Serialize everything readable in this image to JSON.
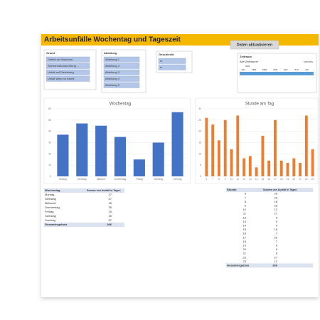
{
  "header": {
    "title": "Arbeitsunfälle Wochentag und Tageszeit",
    "button": "Daten aktualisieren"
  },
  "slicers": [
    {
      "title": "Grund",
      "items": [
        "Defekt an Maschine",
        "Sicherheitsvorkehrung ...",
        "Unfall auf Dienstweg",
        "Unfall Weg zur Arbeit"
      ]
    },
    {
      "title": "Abteilung",
      "items": [
        "Abteilung 1",
        "Abteilung 2",
        "Abteilung 3",
        "Abteilung 4",
        "Abteilung 5"
      ]
    },
    {
      "title": "Geschlecht",
      "items": [
        "m",
        "w"
      ]
    }
  ],
  "timeline": {
    "title": "Zeitraum",
    "subtitle": "Alle Zeiträume",
    "unit": "MONATE",
    "year": "2021",
    "months": [
      "JAN",
      "FEB",
      "MRZ",
      "APR",
      "MAI",
      "JUN",
      "JUL"
    ]
  },
  "chart_data": [
    {
      "type": "bar",
      "title": "Wochentag",
      "categories": [
        "Montag",
        "Dienstag",
        "Mittwoch",
        "Donnerstag",
        "Freitag",
        "Samstag",
        "Sonntag"
      ],
      "values": [
        37,
        47,
        45,
        35,
        15,
        30,
        57
      ],
      "color": "#4472c4",
      "ylim": [
        0,
        60
      ],
      "yticks": [
        0,
        10,
        20,
        30,
        40,
        50,
        60
      ],
      "grid": true
    },
    {
      "type": "bar",
      "title": "Stunde am Tag",
      "categories": [
        "6",
        "7",
        "8",
        "9",
        "10",
        "11",
        "12",
        "13",
        "14",
        "15",
        "16",
        "17",
        "18",
        "19",
        "20",
        "21",
        "22",
        "23"
      ],
      "values": [
        26,
        23,
        16,
        25,
        12,
        27,
        8,
        9,
        4,
        18,
        7,
        25,
        7,
        6,
        8,
        6,
        27,
        12
      ],
      "color": "#ed7d31",
      "ylim": [
        0,
        30
      ],
      "yticks": [
        0,
        5,
        10,
        15,
        20,
        25,
        30
      ],
      "grid": true
    }
  ],
  "tables": [
    {
      "headers": [
        "Wochentag",
        "Summe von Ausfall in Tagen"
      ],
      "total_label": "Gesamtergebnis",
      "total": 266
    },
    {
      "headers": [
        "Stunde",
        "Summe von Ausfall in Tagen"
      ],
      "total_label": "Gesamtergebnis",
      "total": 266
    }
  ]
}
